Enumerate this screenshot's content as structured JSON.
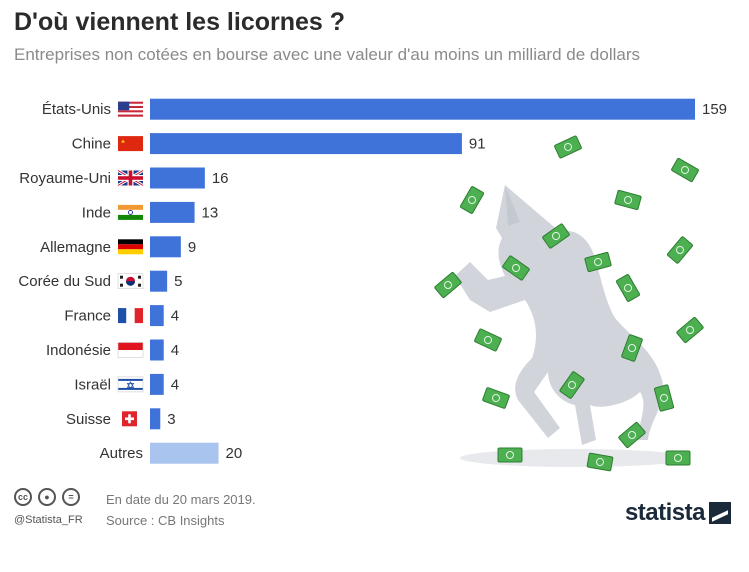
{
  "header": {
    "title": "D'où viennent les licornes ?",
    "subtitle": "Entreprises non cotées en bourse avec une valeur d'au moins un milliard de dollars"
  },
  "chart_data": {
    "type": "bar",
    "orientation": "horizontal",
    "categories": [
      "États-Unis",
      "Chine",
      "Royaume-Uni",
      "Inde",
      "Allemagne",
      "Corée du Sud",
      "France",
      "Indonésie",
      "Israël",
      "Suisse",
      "Autres"
    ],
    "values": [
      159,
      91,
      16,
      13,
      9,
      5,
      4,
      4,
      4,
      3,
      20
    ],
    "flags": [
      "us",
      "cn",
      "gb",
      "in",
      "de",
      "kr",
      "fr",
      "id",
      "il",
      "ch",
      ""
    ],
    "xlim": [
      0,
      159
    ],
    "grid": false,
    "bar_color": "#3f73d9",
    "other_bar_color": "#a9c4ef",
    "data_labels": true
  },
  "footer": {
    "handle": "@Statista_FR",
    "note": "En date du 20 mars 2019.",
    "source": "Source : CB Insights",
    "logo": "statista"
  },
  "icons": [
    "cc-icon",
    "person-icon",
    "equals-icon",
    "unicorn-illustration",
    "banknote-icon"
  ]
}
